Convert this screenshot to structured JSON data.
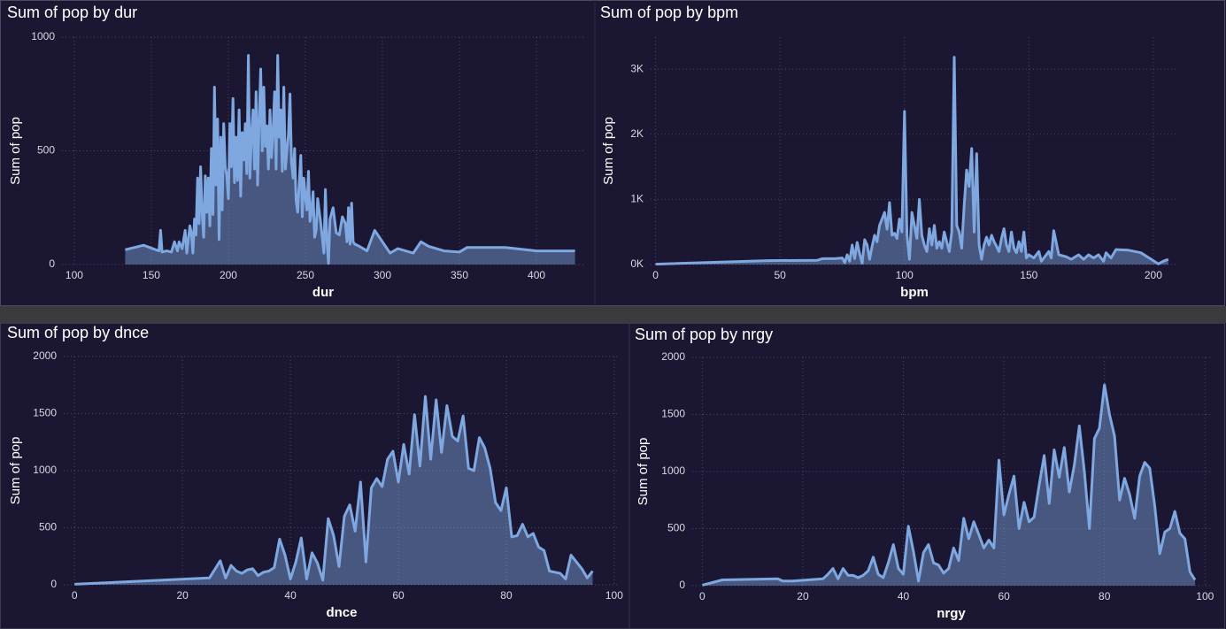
{
  "chart_data": [
    {
      "type": "area",
      "title": "Sum of pop by dur",
      "x_label": "dur",
      "y_label": "Sum of pop",
      "color": "#7fa7e0",
      "grid": true,
      "xlim": [
        92,
        431
      ],
      "ylim": [
        0,
        1000
      ],
      "xticks": [
        100,
        150,
        200,
        250,
        300,
        350,
        400
      ],
      "yticks": [
        0,
        500,
        1000
      ],
      "x": [
        133,
        145,
        155,
        156,
        157,
        160,
        163,
        165,
        167,
        168,
        170,
        172,
        173,
        175,
        176,
        177,
        178,
        179,
        180,
        181,
        182,
        183,
        184,
        185,
        186,
        187,
        188,
        189,
        190,
        191,
        192,
        193,
        194,
        195,
        196,
        197,
        198,
        199,
        200,
        201,
        202,
        203,
        204,
        205,
        206,
        207,
        208,
        209,
        210,
        211,
        212,
        213,
        214,
        215,
        216,
        217,
        218,
        219,
        220,
        221,
        222,
        223,
        224,
        225,
        226,
        227,
        228,
        229,
        230,
        231,
        232,
        233,
        234,
        235,
        236,
        237,
        238,
        239,
        240,
        241,
        242,
        243,
        244,
        245,
        246,
        247,
        248,
        249,
        250,
        251,
        252,
        253,
        254,
        255,
        256,
        257,
        258,
        260,
        262,
        263,
        264,
        265,
        266,
        268,
        270,
        272,
        274,
        276,
        277,
        278,
        279,
        280,
        281,
        282,
        285,
        290,
        295,
        300,
        305,
        310,
        315,
        320,
        325,
        330,
        340,
        350,
        355,
        380,
        400,
        425
      ],
      "values": [
        65,
        85,
        60,
        150,
        55,
        60,
        55,
        100,
        60,
        100,
        70,
        150,
        50,
        170,
        140,
        50,
        200,
        130,
        380,
        180,
        430,
        220,
        120,
        390,
        230,
        380,
        170,
        510,
        220,
        780,
        350,
        640,
        110,
        560,
        240,
        620,
        430,
        390,
        290,
        620,
        430,
        730,
        360,
        560,
        370,
        680,
        300,
        580,
        460,
        620,
        400,
        920,
        380,
        560,
        680,
        420,
        760,
        350,
        640,
        860,
        500,
        780,
        520,
        610,
        420,
        680,
        470,
        580,
        760,
        420,
        920,
        560,
        680,
        410,
        780,
        420,
        500,
        570,
        750,
        450,
        380,
        510,
        280,
        230,
        360,
        480,
        210,
        380,
        300,
        240,
        410,
        190,
        230,
        320,
        120,
        150,
        290,
        180,
        50,
        330,
        100,
        5,
        200,
        250,
        140,
        130,
        210,
        180,
        100,
        250,
        90,
        270,
        100,
        90,
        80,
        60,
        150,
        100,
        50,
        70,
        60,
        50,
        100,
        80,
        60,
        55,
        75,
        75,
        60,
        60
      ]
    },
    {
      "type": "area",
      "title": "Sum of pop by bpm",
      "x_label": "bpm",
      "y_label": "Sum of pop",
      "color": "#7fa7e0",
      "grid": true,
      "xlim": [
        -2,
        210
      ],
      "ylim": [
        0,
        3490
      ],
      "xticks": [
        0,
        50,
        100,
        150,
        200
      ],
      "yticks": [
        {
          "value": 0,
          "label": "0K"
        },
        {
          "value": 1000,
          "label": "1K"
        },
        {
          "value": 2000,
          "label": "2K"
        },
        {
          "value": 3000,
          "label": "3K"
        }
      ],
      "x": [
        0,
        45,
        65,
        67,
        72,
        75,
        76,
        77,
        78,
        79,
        80,
        81,
        82,
        83,
        84,
        85,
        86,
        87,
        88,
        89,
        90,
        91,
        92,
        93,
        94,
        95,
        96,
        97,
        98,
        99,
        100,
        101,
        102,
        103,
        104,
        105,
        106,
        107,
        108,
        109,
        110,
        111,
        112,
        113,
        114,
        115,
        116,
        117,
        118,
        119,
        120,
        121,
        122,
        123,
        124,
        125,
        126,
        127,
        128,
        129,
        130,
        131,
        132,
        133,
        134,
        135,
        136,
        137,
        138,
        139,
        140,
        141,
        142,
        143,
        144,
        145,
        146,
        147,
        148,
        149,
        150,
        152,
        154,
        155,
        156,
        158,
        159,
        160,
        162,
        165,
        167,
        170,
        172,
        174,
        176,
        178,
        180,
        181,
        183,
        185,
        190,
        195,
        200,
        202,
        204,
        206
      ],
      "values": [
        5,
        60,
        65,
        90,
        90,
        100,
        30,
        150,
        50,
        300,
        90,
        340,
        160,
        20,
        380,
        300,
        80,
        280,
        450,
        350,
        600,
        700,
        800,
        540,
        950,
        450,
        480,
        400,
        700,
        500,
        2350,
        450,
        80,
        800,
        600,
        400,
        1000,
        450,
        300,
        200,
        550,
        300,
        600,
        250,
        350,
        250,
        500,
        350,
        200,
        500,
        3180,
        600,
        500,
        250,
        900,
        1450,
        1200,
        1780,
        500,
        1700,
        300,
        80,
        300,
        420,
        300,
        450,
        350,
        280,
        200,
        400,
        550,
        300,
        200,
        500,
        250,
        180,
        350,
        200,
        500,
        100,
        150,
        100,
        200,
        50,
        100,
        200,
        100,
        520,
        150,
        120,
        80,
        150,
        80,
        150,
        100,
        150,
        50,
        180,
        100,
        230,
        220,
        180,
        60,
        10,
        50,
        80
      ]
    },
    {
      "type": "area",
      "title": "Sum of pop by dnce",
      "x_label": "dnce",
      "y_label": "Sum of pop",
      "color": "#7fa7e0",
      "grid": true,
      "xlim": [
        -2,
        101
      ],
      "ylim": [
        0,
        2000
      ],
      "xticks": [
        0,
        20,
        40,
        60,
        80,
        100
      ],
      "yticks": [
        0,
        500,
        1000,
        1500,
        2000
      ],
      "x": [
        0,
        25,
        27,
        28,
        29,
        30,
        31,
        32,
        33,
        34,
        35,
        36,
        37,
        38,
        39,
        40,
        41,
        42,
        43,
        44,
        45,
        46,
        47,
        48,
        49,
        50,
        51,
        52,
        53,
        54,
        55,
        56,
        57,
        58,
        59,
        60,
        61,
        62,
        63,
        64,
        65,
        66,
        67,
        68,
        69,
        70,
        71,
        72,
        73,
        74,
        75,
        76,
        77,
        78,
        79,
        80,
        81,
        82,
        83,
        84,
        85,
        86,
        87,
        88,
        89,
        90,
        91,
        92,
        93,
        94,
        95,
        96
      ],
      "values": [
        5,
        60,
        210,
        60,
        170,
        120,
        100,
        130,
        140,
        80,
        110,
        120,
        150,
        400,
        260,
        50,
        200,
        410,
        50,
        280,
        190,
        40,
        580,
        430,
        160,
        600,
        700,
        470,
        900,
        200,
        850,
        930,
        860,
        1100,
        1170,
        900,
        1230,
        970,
        1490,
        1040,
        1650,
        1100,
        1620,
        1160,
        1570,
        1300,
        1260,
        1480,
        1020,
        1000,
        1290,
        1200,
        1020,
        720,
        650,
        850,
        420,
        430,
        530,
        420,
        450,
        330,
        300,
        120,
        110,
        100,
        50,
        260,
        200,
        140,
        60,
        120
      ]
    },
    {
      "type": "area",
      "title": "Sum of pop by nrgy",
      "x_label": "nrgy",
      "y_label": "Sum of pop",
      "color": "#7fa7e0",
      "grid": true,
      "xlim": [
        -2,
        101
      ],
      "ylim": [
        0,
        2000
      ],
      "xticks": [
        0,
        20,
        40,
        60,
        80,
        100
      ],
      "yticks": [
        0,
        500,
        1000,
        1500,
        2000
      ],
      "x": [
        0,
        4,
        15,
        16,
        18,
        24,
        25,
        26,
        27,
        28,
        29,
        30,
        31,
        32,
        33,
        34,
        35,
        36,
        37,
        38,
        39,
        40,
        41,
        42,
        43,
        44,
        45,
        46,
        47,
        48,
        49,
        50,
        51,
        52,
        53,
        54,
        55,
        56,
        57,
        58,
        59,
        60,
        61,
        62,
        63,
        64,
        65,
        66,
        67,
        68,
        69,
        70,
        71,
        72,
        73,
        74,
        75,
        76,
        77,
        78,
        79,
        80,
        81,
        82,
        83,
        84,
        85,
        86,
        87,
        88,
        89,
        90,
        91,
        92,
        93,
        94,
        95,
        96,
        97,
        98
      ],
      "values": [
        5,
        50,
        60,
        40,
        40,
        60,
        100,
        150,
        60,
        150,
        90,
        90,
        70,
        90,
        130,
        250,
        100,
        70,
        200,
        360,
        150,
        100,
        520,
        300,
        40,
        290,
        360,
        200,
        180,
        110,
        150,
        330,
        220,
        590,
        410,
        560,
        450,
        330,
        400,
        330,
        1100,
        620,
        800,
        960,
        500,
        730,
        560,
        600,
        880,
        1140,
        720,
        1190,
        950,
        1210,
        820,
        1060,
        1400,
        1000,
        500,
        1290,
        1380,
        1760,
        1500,
        1310,
        750,
        940,
        800,
        590,
        960,
        1080,
        1030,
        700,
        280,
        470,
        500,
        650,
        460,
        410,
        120,
        50
      ]
    }
  ]
}
